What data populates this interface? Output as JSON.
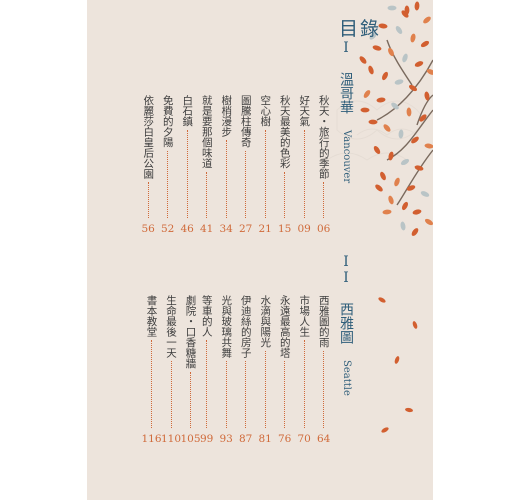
{
  "heading": "目錄",
  "section1": {
    "numeral": "I",
    "title": "溫哥華",
    "subtitle_en": "Vancouver",
    "entries": [
      {
        "label": "秋天・旅行的季節",
        "page": "06"
      },
      {
        "label": "好天氣",
        "page": "09"
      },
      {
        "label": "秋天最美的色彩",
        "page": "15"
      },
      {
        "label": "空心樹",
        "page": "21"
      },
      {
        "label": "圖騰柱傳奇",
        "page": "27"
      },
      {
        "label": "樹梢漫步",
        "page": "34"
      },
      {
        "label": "就是要那個味道",
        "page": "41"
      },
      {
        "label": "白石鎮",
        "page": "46"
      },
      {
        "label": "免費的夕陽",
        "page": "52"
      },
      {
        "label": "依麗莎白皇后公園",
        "page": "56"
      }
    ]
  },
  "section2": {
    "numeral": "II",
    "title": "西雅圖",
    "subtitle_en": "Seattle",
    "entries": [
      {
        "label": "西雅圖的雨",
        "page": "64"
      },
      {
        "label": "市場人生",
        "page": "70"
      },
      {
        "label": "永遠最高的塔",
        "page": "76"
      },
      {
        "label": "水滴與陽光",
        "page": "81"
      },
      {
        "label": "伊迪絲的房子",
        "page": "87"
      },
      {
        "label": "光與玻璃共舞",
        "page": "93"
      },
      {
        "label": "等車的人",
        "page": "99"
      },
      {
        "label": "劇院・口香糖牆",
        "page": "105"
      },
      {
        "label": "生命最後一天",
        "page": "110"
      },
      {
        "label": "書本教堂",
        "page": "116"
      }
    ]
  },
  "colors": {
    "accent": "#d06a3a",
    "title": "#2f5e7a",
    "paper": "#ede4dc",
    "text": "#3d3d3d"
  }
}
